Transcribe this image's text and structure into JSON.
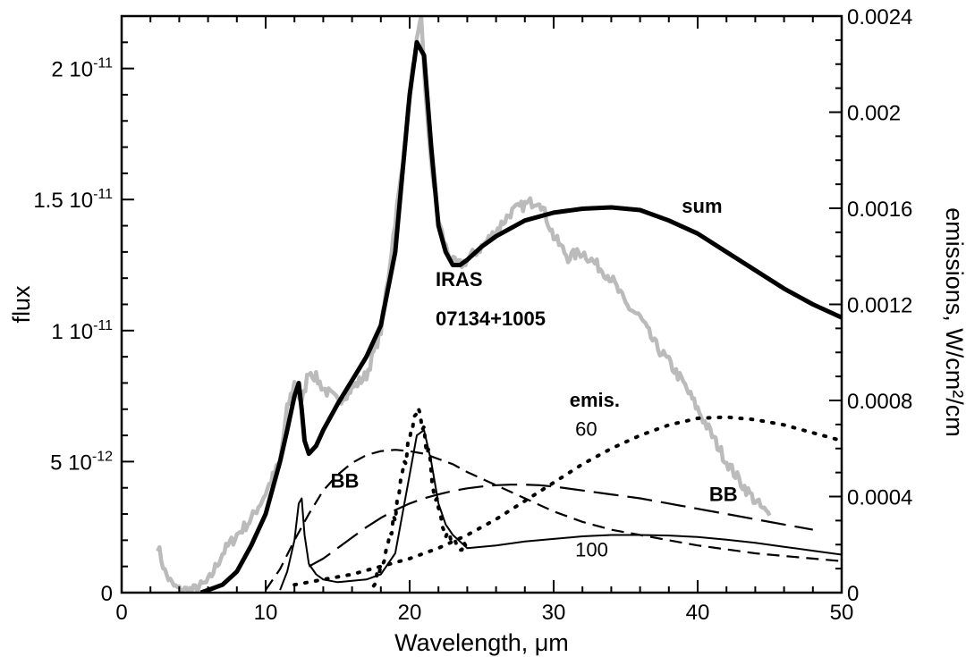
{
  "chart_data": {
    "type": "line",
    "xlabel": "Wavelength, μm",
    "ylabel_left": "flux",
    "ylabel_right": "emissions, W/cm²/cm",
    "xlim": [
      0,
      50
    ],
    "ylim_left": [
      0,
      2.2e-11
    ],
    "ylim_right": [
      0,
      0.0024
    ],
    "x_ticks": [
      0,
      10,
      20,
      30,
      40,
      50
    ],
    "x_tick_labels": [
      "0",
      "10",
      "20",
      "30",
      "40",
      "50"
    ],
    "y_left_ticks": [
      0,
      5e-12,
      1e-11,
      1.5e-11,
      2e-11
    ],
    "y_left_tick_labels": [
      {
        "mant": "0",
        "exp": ""
      },
      {
        "mant": "5 10",
        "exp": "-12"
      },
      {
        "mant": "1 10",
        "exp": "-11"
      },
      {
        "mant": "1.5 10",
        "exp": "-11"
      },
      {
        "mant": "2 10",
        "exp": "-11"
      }
    ],
    "y_right_ticks": [
      0,
      0.0004,
      0.0008,
      0.0012,
      0.0016,
      0.002,
      0.0024
    ],
    "y_right_tick_labels": [
      "0",
      "0.0004",
      "0.0008",
      "0.0012",
      "0.0016",
      "0.002",
      "0.0024"
    ],
    "grid": false,
    "series": [
      {
        "name": "IRAS 07134+1005",
        "axis": "left",
        "color": "#bbbbbb",
        "style": "solid",
        "noise": 2.2e-13,
        "x": [
          2.5,
          3,
          3.5,
          4,
          5,
          6,
          7,
          8,
          9,
          10,
          11,
          11.5,
          12,
          12.5,
          13,
          13.5,
          14,
          15,
          16,
          17,
          18,
          18.5,
          19,
          19.5,
          20,
          20.5,
          20.8,
          21,
          21.3,
          21.7,
          22,
          22.5,
          23,
          23.5,
          24,
          25,
          26,
          27,
          28,
          29,
          30,
          31,
          32,
          33,
          34,
          35,
          36,
          37,
          38,
          39,
          40,
          41,
          42,
          43,
          44,
          45
        ],
        "y": [
          1.8e-12,
          8e-13,
          3e-13,
          1e-13,
          1e-13,
          4e-13,
          1.5e-12,
          2.2e-12,
          2.8e-12,
          3.8e-12,
          5e-12,
          7e-12,
          8e-12,
          7.2e-12,
          8.5e-12,
          8.2e-12,
          7.8e-12,
          7.3e-12,
          7.8e-12,
          8.3e-12,
          1e-11,
          1.2e-11,
          1.42e-11,
          1.62e-11,
          1.9e-11,
          2.1e-11,
          2.18e-11,
          2e-11,
          1.75e-11,
          1.55e-11,
          1.42e-11,
          1.32e-11,
          1.26e-11,
          1.25e-11,
          1.27e-11,
          1.32e-11,
          1.38e-11,
          1.45e-11,
          1.48e-11,
          1.5e-11,
          1.36e-11,
          1.28e-11,
          1.3e-11,
          1.25e-11,
          1.2e-11,
          1.1e-11,
          1.05e-11,
          9.5e-12,
          8.8e-12,
          8e-12,
          7e-12,
          6e-12,
          5e-12,
          4.2e-12,
          3.5e-12,
          2.9e-12
        ]
      },
      {
        "name": "sum",
        "axis": "left",
        "color": "#000000",
        "style": "solid",
        "width": 5,
        "noise": 0,
        "x": [
          5.5,
          6,
          7,
          8,
          9,
          10,
          11,
          11.5,
          12,
          12.3,
          12.5,
          12.7,
          13,
          13.5,
          14,
          15,
          16,
          17,
          18,
          19,
          19.5,
          20,
          20.5,
          21,
          21.5,
          22,
          22.5,
          23,
          23.5,
          24,
          25,
          26,
          28,
          30,
          32,
          34,
          36,
          38,
          40,
          42,
          44,
          46,
          48,
          50
        ],
        "y": [
          0,
          1e-13,
          3e-13,
          8e-13,
          1.8e-12,
          3e-12,
          5e-12,
          6.2e-12,
          7.5e-12,
          8e-12,
          7e-12,
          5.8e-12,
          5.3e-12,
          5.6e-12,
          6.2e-12,
          7.2e-12,
          8.1e-12,
          9e-12,
          1.02e-11,
          1.3e-11,
          1.6e-11,
          1.9e-11,
          2.1e-11,
          2.05e-11,
          1.7e-11,
          1.4e-11,
          1.3e-11,
          1.25e-11,
          1.25e-11,
          1.27e-11,
          1.32e-11,
          1.36e-11,
          1.42e-11,
          1.45e-11,
          1.465e-11,
          1.47e-11,
          1.46e-11,
          1.42e-11,
          1.37e-11,
          1.3e-11,
          1.23e-11,
          1.16e-11,
          1.1e-11,
          1.05e-11
        ]
      },
      {
        "name": "BB",
        "axis": "left",
        "color": "#000000",
        "style": "short-dash",
        "noise": 0,
        "x": [
          10,
          11,
          12,
          13,
          14,
          15,
          16,
          17,
          18,
          19,
          20,
          21,
          22,
          23,
          24,
          25,
          26,
          28,
          30,
          32,
          34,
          36,
          38,
          40,
          42,
          44,
          46,
          48,
          50
        ],
        "y": [
          1e-13,
          9e-13,
          2e-12,
          3e-12,
          3.9e-12,
          4.5e-12,
          4.95e-12,
          5.25e-12,
          5.4e-12,
          5.45e-12,
          5.4e-12,
          5.3e-12,
          5.1e-12,
          4.9e-12,
          4.6e-12,
          4.35e-12,
          4.1e-12,
          3.6e-12,
          3.1e-12,
          2.7e-12,
          2.4e-12,
          2.2e-12,
          2e-12,
          1.8e-12,
          1.65e-12,
          1.5e-12,
          1.4e-12,
          1.3e-12,
          1.2e-12
        ]
      },
      {
        "name": "BB",
        "axis": "left",
        "color": "#000000",
        "style": "long-dash",
        "noise": 0,
        "x": [
          13,
          14,
          15,
          16,
          17,
          18,
          19,
          20,
          21,
          22,
          23,
          24,
          25,
          26,
          27,
          28,
          29,
          30,
          32,
          34,
          36,
          38,
          40,
          42,
          44,
          46,
          48
        ],
        "y": [
          1e-12,
          1.3e-12,
          1.7e-12,
          2.1e-12,
          2.5e-12,
          2.85e-12,
          3.15e-12,
          3.4e-12,
          3.6e-12,
          3.75e-12,
          3.88e-12,
          3.98e-12,
          4.05e-12,
          4.1e-12,
          4.12e-12,
          4.12e-12,
          4.1e-12,
          4.05e-12,
          3.9e-12,
          3.75e-12,
          3.6e-12,
          3.4e-12,
          3.2e-12,
          3e-12,
          2.8e-12,
          2.6e-12,
          2.4e-12
        ]
      },
      {
        "name": "60",
        "axis": "left",
        "color": "#000000",
        "style": "dotted",
        "noise": 0,
        "x": [
          12,
          14,
          16,
          18,
          20,
          22,
          24,
          26,
          28,
          30,
          32,
          34,
          36,
          38,
          40,
          42,
          44,
          46,
          48,
          50
        ],
        "y": [
          3e-13,
          5e-13,
          7e-13,
          1e-12,
          1.3e-12,
          1.7e-12,
          2.2e-12,
          2.8e-12,
          3.5e-12,
          4.2e-12,
          4.9e-12,
          5.5e-12,
          6e-12,
          6.4e-12,
          6.65e-12,
          6.7e-12,
          6.6e-12,
          6.4e-12,
          6.1e-12,
          5.8e-12
        ]
      },
      {
        "name": "100",
        "axis": "left",
        "color": "#000000",
        "style": "solid",
        "width": 2,
        "noise": 0,
        "x": [
          11,
          11.5,
          12,
          12.3,
          12.5,
          12.7,
          13,
          13.5,
          14,
          15,
          16,
          17,
          18,
          19,
          20,
          20.5,
          21,
          21.5,
          22,
          22.5,
          23,
          24,
          26,
          28,
          30,
          32,
          34,
          36,
          38,
          40,
          42,
          44,
          46,
          48,
          50
        ],
        "y": [
          1e-13,
          8e-13,
          2e-12,
          3.4e-12,
          3.6e-12,
          2.2e-12,
          1.1e-12,
          7e-13,
          5e-13,
          4e-13,
          4.5e-13,
          5e-13,
          7e-13,
          1.5e-12,
          4.5e-12,
          6e-12,
          6.2e-12,
          5e-12,
          3.4e-12,
          2.6e-12,
          2.2e-12,
          1.7e-12,
          1.8e-12,
          1.95e-12,
          2.05e-12,
          2.15e-12,
          2.2e-12,
          2.2e-12,
          2.18e-12,
          2.12e-12,
          2.02e-12,
          1.9e-12,
          1.75e-12,
          1.6e-12,
          1.45e-12
        ]
      },
      {
        "name": "emis.",
        "axis": "left",
        "color": "#000000",
        "style": "dotted",
        "width": 4,
        "noise": 3e-13,
        "x": [
          17.5,
          18,
          18.5,
          19,
          19.5,
          20,
          20.3,
          20.6,
          21,
          21.3,
          21.7,
          22,
          22.5,
          23,
          23.5,
          24
        ],
        "y": [
          5e-13,
          1e-12,
          1.8e-12,
          3e-12,
          4.5e-12,
          5.8e-12,
          6.5e-12,
          6.8e-12,
          6.2e-12,
          5.2e-12,
          4e-12,
          3e-12,
          2.4e-12,
          2.1e-12,
          1.9e-12,
          1.8e-12
        ]
      }
    ],
    "annotations": [
      {
        "text": "IRAS",
        "color": "#bbbbbb",
        "bold": true
      },
      {
        "text": "07134+1005",
        "color": "#bbbbbb",
        "bold": true
      },
      {
        "text": "sum",
        "color": "#000000",
        "bold": true
      },
      {
        "text": "BB",
        "color": "#000000",
        "bold": true
      },
      {
        "text": "BB",
        "color": "#000000",
        "bold": true
      },
      {
        "text": "emis.",
        "color": "#000000",
        "bold": true
      },
      {
        "text": "60",
        "color": "#000000",
        "bold": false
      },
      {
        "text": "100",
        "color": "#000000",
        "bold": false
      }
    ]
  }
}
